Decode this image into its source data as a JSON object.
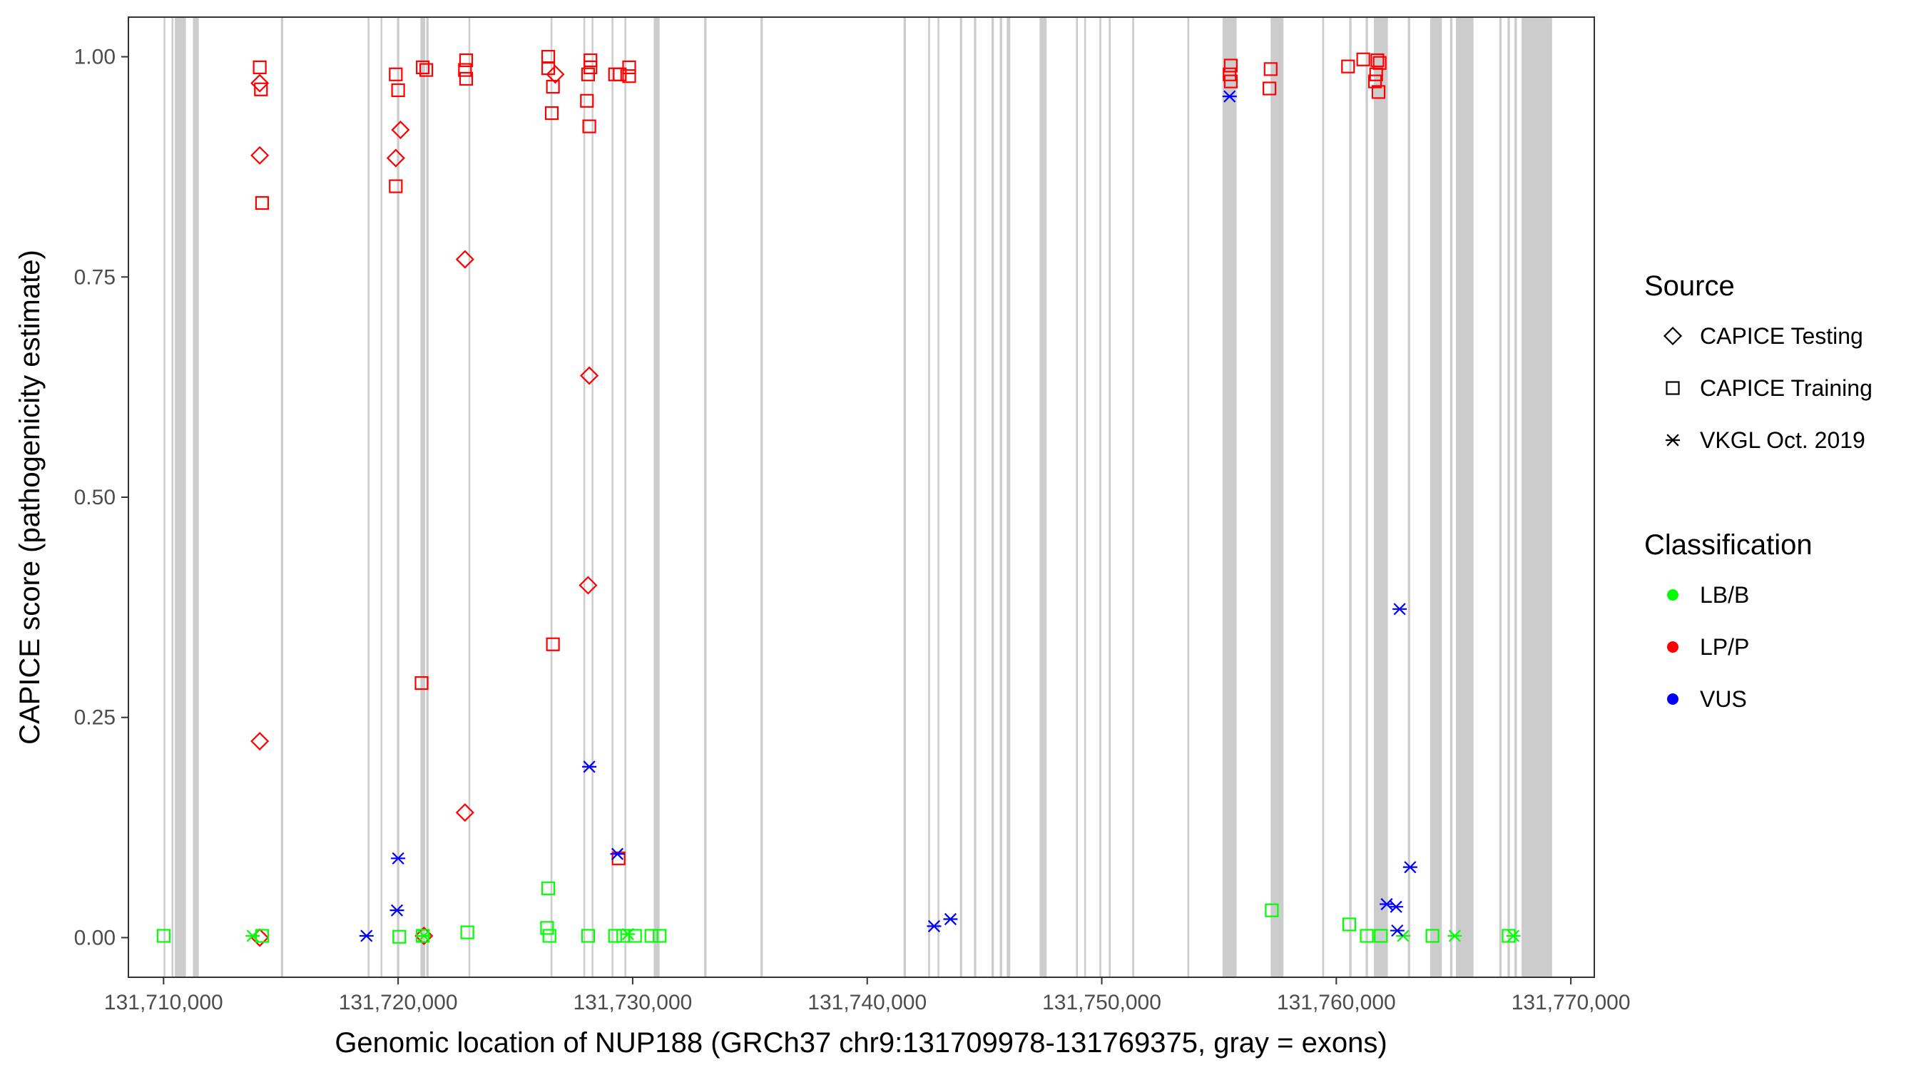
{
  "chart_data": {
    "type": "scatter",
    "xlabel": "Genomic location of NUP188 (GRCh37 chr9:131709978-131769375, gray = exons)",
    "ylabel": "CAPICE score (pathogenicity estimate)",
    "xlim": [
      131708500,
      131771000
    ],
    "ylim": [
      -0.045,
      1.045
    ],
    "x_ticks": [
      131710000,
      131720000,
      131730000,
      131740000,
      131750000,
      131760000,
      131770000
    ],
    "x_tick_labels": [
      "131,710,000",
      "131,720,000",
      "131,730,000",
      "131,740,000",
      "131,750,000",
      "131,760,000",
      "131,770,000"
    ],
    "y_ticks": [
      0,
      0.25,
      0.5,
      0.75,
      1.0
    ],
    "y_tick_labels": [
      "0.00",
      "0.25",
      "0.50",
      "0.75",
      "1.00"
    ],
    "grid": false,
    "legend_position": "right",
    "exons": [
      [
        131710000,
        131710060
      ],
      [
        131710340,
        131710420
      ],
      [
        131710480,
        131710950
      ],
      [
        131711250,
        131711500
      ],
      [
        131715000,
        131715100
      ],
      [
        131718700,
        131718760
      ],
      [
        131719250,
        131719310
      ],
      [
        131719950,
        131720050
      ],
      [
        131720950,
        131721150
      ],
      [
        131721200,
        131721300
      ],
      [
        131723000,
        131723060
      ],
      [
        131726500,
        131726560
      ],
      [
        131727900,
        131727960
      ],
      [
        131728250,
        131728310
      ],
      [
        131729100,
        131729160
      ],
      [
        131729650,
        131729710
      ],
      [
        131730900,
        131731150
      ],
      [
        131733050,
        131733150
      ],
      [
        131735450,
        131735550
      ],
      [
        131741550,
        131741650
      ],
      [
        131742600,
        131742680
      ],
      [
        131743000,
        131743060
      ],
      [
        131743950,
        131744050
      ],
      [
        131744550,
        131744650
      ],
      [
        131745300,
        131745400
      ],
      [
        131745650,
        131745750
      ],
      [
        131745950,
        131746100
      ],
      [
        131747350,
        131747650
      ],
      [
        131748900,
        131748980
      ],
      [
        131749250,
        131749330
      ],
      [
        131749900,
        131749980
      ],
      [
        131750300,
        131750380
      ],
      [
        131751300,
        131751380
      ],
      [
        131753650,
        131753730
      ],
      [
        131755150,
        131755750
      ],
      [
        131757200,
        131757750
      ],
      [
        131759400,
        131759480
      ],
      [
        131760550,
        131760650
      ],
      [
        131761250,
        131761350
      ],
      [
        131761600,
        131762200
      ],
      [
        131763050,
        131763150
      ],
      [
        131764000,
        131764500
      ],
      [
        131764850,
        131764950
      ],
      [
        131765100,
        131765850
      ],
      [
        131766950,
        131767050
      ],
      [
        131767300,
        131767400
      ],
      [
        131767600,
        131767700
      ],
      [
        131767900,
        131769200
      ]
    ],
    "series": [
      {
        "name": "CAPICE Testing",
        "shape": "diamond",
        "points": [
          {
            "x": 131714100,
            "y": 0.97,
            "class": "LP/P"
          },
          {
            "x": 131714100,
            "y": 0.888,
            "class": "LP/P"
          },
          {
            "x": 131714100,
            "y": 0.223,
            "class": "LP/P"
          },
          {
            "x": 131714100,
            "y": 0.0,
            "class": "LP/P"
          },
          {
            "x": 131719900,
            "y": 0.885,
            "class": "LP/P"
          },
          {
            "x": 131720100,
            "y": 0.917,
            "class": "LP/P"
          },
          {
            "x": 131721100,
            "y": 0.002,
            "class": "LP/P"
          },
          {
            "x": 131722850,
            "y": 0.77,
            "class": "LP/P"
          },
          {
            "x": 131722850,
            "y": 0.142,
            "class": "LP/P"
          },
          {
            "x": 131726700,
            "y": 0.98,
            "class": "LP/P"
          },
          {
            "x": 131728150,
            "y": 0.638,
            "class": "LP/P"
          },
          {
            "x": 131728100,
            "y": 0.4,
            "class": "LP/P"
          }
        ]
      },
      {
        "name": "CAPICE Training",
        "shape": "square",
        "points": [
          {
            "x": 131714100,
            "y": 0.988,
            "class": "LP/P"
          },
          {
            "x": 131714150,
            "y": 0.963,
            "class": "LP/P"
          },
          {
            "x": 131714200,
            "y": 0.834,
            "class": "LP/P"
          },
          {
            "x": 131719900,
            "y": 0.98,
            "class": "LP/P"
          },
          {
            "x": 131720000,
            "y": 0.962,
            "class": "LP/P"
          },
          {
            "x": 131719900,
            "y": 0.853,
            "class": "LP/P"
          },
          {
            "x": 131721050,
            "y": 0.988,
            "class": "LP/P"
          },
          {
            "x": 131721200,
            "y": 0.985,
            "class": "LP/P"
          },
          {
            "x": 131721000,
            "y": 0.289,
            "class": "LP/P"
          },
          {
            "x": 131722900,
            "y": 0.996,
            "class": "LP/P"
          },
          {
            "x": 131722850,
            "y": 0.985,
            "class": "LP/P"
          },
          {
            "x": 131722900,
            "y": 0.975,
            "class": "LP/P"
          },
          {
            "x": 131726400,
            "y": 1.0,
            "class": "LP/P"
          },
          {
            "x": 131726400,
            "y": 0.987,
            "class": "LP/P"
          },
          {
            "x": 131726600,
            "y": 0.966,
            "class": "LP/P"
          },
          {
            "x": 131726550,
            "y": 0.936,
            "class": "LP/P"
          },
          {
            "x": 131726600,
            "y": 0.333,
            "class": "LP/P"
          },
          {
            "x": 131728200,
            "y": 0.996,
            "class": "LP/P"
          },
          {
            "x": 131728200,
            "y": 0.988,
            "class": "LP/P"
          },
          {
            "x": 131728100,
            "y": 0.98,
            "class": "LP/P"
          },
          {
            "x": 131728050,
            "y": 0.95,
            "class": "LP/P"
          },
          {
            "x": 131728150,
            "y": 0.921,
            "class": "LP/P"
          },
          {
            "x": 131729250,
            "y": 0.98,
            "class": "LP/P"
          },
          {
            "x": 131729450,
            "y": 0.98,
            "class": "LP/P"
          },
          {
            "x": 131729850,
            "y": 0.988,
            "class": "LP/P"
          },
          {
            "x": 131729850,
            "y": 0.978,
            "class": "LP/P"
          },
          {
            "x": 131729400,
            "y": 0.09,
            "class": "LP/P"
          },
          {
            "x": 131755500,
            "y": 0.99,
            "class": "LP/P"
          },
          {
            "x": 131755450,
            "y": 0.98,
            "class": "LP/P"
          },
          {
            "x": 131755500,
            "y": 0.972,
            "class": "LP/P"
          },
          {
            "x": 131757200,
            "y": 0.986,
            "class": "LP/P"
          },
          {
            "x": 131757150,
            "y": 0.964,
            "class": "LP/P"
          },
          {
            "x": 131760500,
            "y": 0.989,
            "class": "LP/P"
          },
          {
            "x": 131761150,
            "y": 0.997,
            "class": "LP/P"
          },
          {
            "x": 131761750,
            "y": 0.996,
            "class": "LP/P"
          },
          {
            "x": 131761850,
            "y": 0.993,
            "class": "LP/P"
          },
          {
            "x": 131761700,
            "y": 0.98,
            "class": "LP/P"
          },
          {
            "x": 131761650,
            "y": 0.972,
            "class": "LP/P"
          },
          {
            "x": 131761800,
            "y": 0.96,
            "class": "LP/P"
          },
          {
            "x": 131710000,
            "y": 0.002,
            "class": "LB/B"
          },
          {
            "x": 131714200,
            "y": 0.002,
            "class": "LB/B"
          },
          {
            "x": 131720050,
            "y": 0.001,
            "class": "LB/B"
          },
          {
            "x": 131721050,
            "y": 0.002,
            "class": "LB/B"
          },
          {
            "x": 131722950,
            "y": 0.006,
            "class": "LB/B"
          },
          {
            "x": 131726400,
            "y": 0.056,
            "class": "LB/B"
          },
          {
            "x": 131726350,
            "y": 0.011,
            "class": "LB/B"
          },
          {
            "x": 131726450,
            "y": 0.002,
            "class": "LB/B"
          },
          {
            "x": 131728100,
            "y": 0.002,
            "class": "LB/B"
          },
          {
            "x": 131729250,
            "y": 0.002,
            "class": "LB/B"
          },
          {
            "x": 131729600,
            "y": 0.002,
            "class": "LB/B"
          },
          {
            "x": 131730100,
            "y": 0.002,
            "class": "LB/B"
          },
          {
            "x": 131730800,
            "y": 0.002,
            "class": "LB/B"
          },
          {
            "x": 131731150,
            "y": 0.002,
            "class": "LB/B"
          },
          {
            "x": 131757250,
            "y": 0.031,
            "class": "LB/B"
          },
          {
            "x": 131760550,
            "y": 0.015,
            "class": "LB/B"
          },
          {
            "x": 131761300,
            "y": 0.002,
            "class": "LB/B"
          },
          {
            "x": 131761900,
            "y": 0.002,
            "class": "LB/B"
          },
          {
            "x": 131764100,
            "y": 0.002,
            "class": "LB/B"
          },
          {
            "x": 131767350,
            "y": 0.002,
            "class": "LB/B"
          }
        ]
      },
      {
        "name": "VKGL Oct. 2019",
        "shape": "asterisk",
        "points": [
          {
            "x": 131713800,
            "y": 0.002,
            "class": "LB/B"
          },
          {
            "x": 131721100,
            "y": 0.002,
            "class": "LB/B"
          },
          {
            "x": 131729800,
            "y": 0.004,
            "class": "LB/B"
          },
          {
            "x": 131762850,
            "y": 0.002,
            "class": "LB/B"
          },
          {
            "x": 131765050,
            "y": 0.002,
            "class": "LB/B"
          },
          {
            "x": 131767550,
            "y": 0.002,
            "class": "LB/B"
          },
          {
            "x": 131718650,
            "y": 0.002,
            "class": "VUS"
          },
          {
            "x": 131720000,
            "y": 0.09,
            "class": "VUS"
          },
          {
            "x": 131719950,
            "y": 0.031,
            "class": "VUS"
          },
          {
            "x": 131728150,
            "y": 0.194,
            "class": "VUS"
          },
          {
            "x": 131729350,
            "y": 0.095,
            "class": "VUS"
          },
          {
            "x": 131742850,
            "y": 0.013,
            "class": "VUS"
          },
          {
            "x": 131743550,
            "y": 0.021,
            "class": "VUS"
          },
          {
            "x": 131755450,
            "y": 0.955,
            "class": "VUS"
          },
          {
            "x": 131762700,
            "y": 0.373,
            "class": "VUS"
          },
          {
            "x": 131763150,
            "y": 0.08,
            "class": "VUS"
          },
          {
            "x": 131762150,
            "y": 0.038,
            "class": "VUS"
          },
          {
            "x": 131762550,
            "y": 0.035,
            "class": "VUS"
          },
          {
            "x": 131762600,
            "y": 0.008,
            "class": "VUS"
          }
        ]
      }
    ],
    "legend": {
      "shape_title": "Source",
      "shape_items": [
        {
          "label": "CAPICE Testing",
          "shape": "diamond"
        },
        {
          "label": "CAPICE Training",
          "shape": "square"
        },
        {
          "label": "VKGL Oct. 2019",
          "shape": "asterisk"
        }
      ],
      "color_title": "Classification",
      "color_items": [
        {
          "label": "LB/B",
          "color": "#00ff00"
        },
        {
          "label": "LP/P",
          "color": "#ff0000"
        },
        {
          "label": "VUS",
          "color": "#0000ff"
        }
      ]
    },
    "colors": {
      "LB/B": "#00ff00",
      "LP/P": "#ff0000",
      "VUS": "#0000ff",
      "exon": "#cccccc"
    }
  }
}
